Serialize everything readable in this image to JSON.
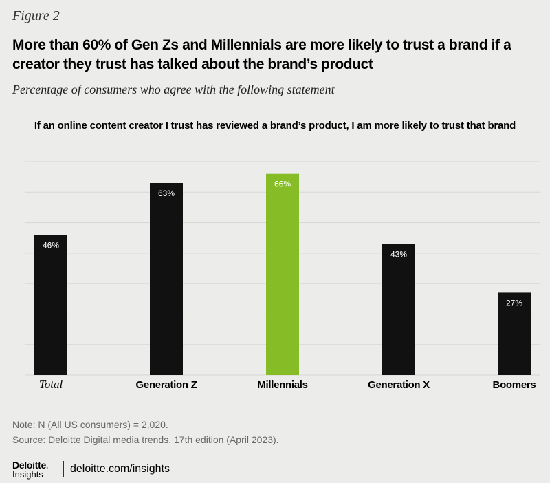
{
  "figure_label": "Figure 2",
  "title": "More than 60% of Gen Zs and Millennials are more likely to trust a brand if a creator they trust has talked about the brand’s product",
  "subtitle": "Percentage of consumers who agree with the following statement",
  "statement": "If an online content creator I trust has reviewed a brand’s product, I am more likely to trust that brand",
  "chart_data": {
    "type": "bar",
    "title": "If an online content creator I trust has reviewed a brand’s product, I am more likely to trust that brand",
    "categories": [
      "Total",
      "Generation Z",
      "Millennials",
      "Generation X",
      "Boomers"
    ],
    "values": [
      46,
      63,
      66,
      43,
      27
    ],
    "value_labels": [
      "46%",
      "63%",
      "66%",
      "43%",
      "27%"
    ],
    "ylim": [
      0,
      70
    ],
    "grid": true,
    "bar_color": "#111111",
    "highlight_color": "#86bc25",
    "highlight_category": "Millennials",
    "gridline_color": "#d6d6d4"
  },
  "note": "Note: N (All US consumers) = 2,020.",
  "source": "Source: Deloitte Digital media trends, 17th edition (April 2023).",
  "footer": {
    "logo_main": "Deloitte",
    "logo_dot": ".",
    "logo_sub": "Insights",
    "link": "deloitte.com/insights"
  }
}
